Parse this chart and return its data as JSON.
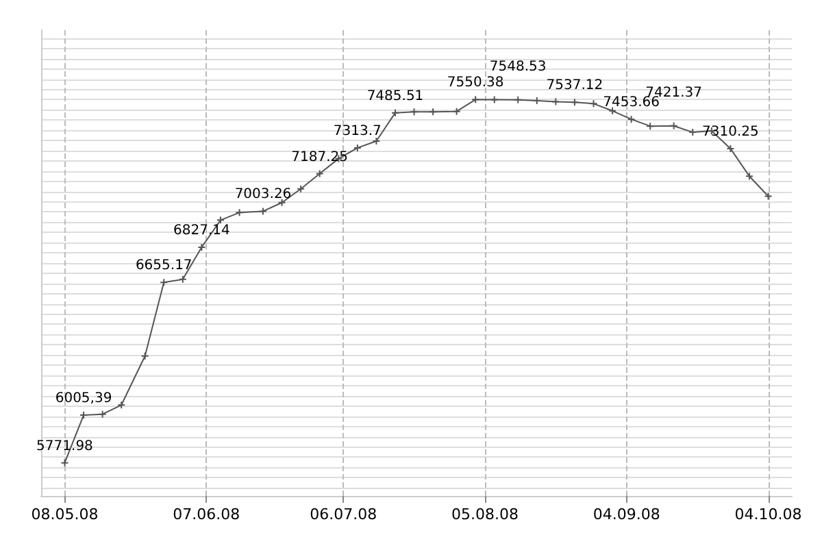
{
  "chart_data": {
    "type": "line",
    "x": [
      "2008-05-08",
      "2008-05-12",
      "2008-05-16",
      "2008-05-20",
      "2008-05-25",
      "2008-05-29",
      "2008-06-02",
      "2008-06-06",
      "2008-06-10",
      "2008-06-14",
      "2008-06-19",
      "2008-06-23",
      "2008-06-27",
      "2008-07-01",
      "2008-07-05",
      "2008-07-09",
      "2008-07-13",
      "2008-07-17",
      "2008-07-21",
      "2008-07-25",
      "2008-07-30",
      "2008-08-03",
      "2008-08-07",
      "2008-08-12",
      "2008-08-16",
      "2008-08-20",
      "2008-08-24",
      "2008-08-28",
      "2008-09-01",
      "2008-09-05",
      "2008-09-09",
      "2008-09-14",
      "2008-09-18",
      "2008-09-22",
      "2008-09-26",
      "2008-09-30",
      "2008-10-04"
    ],
    "series": [
      {
        "color": "#555555",
        "values": [
          5771.98,
          6005.39,
          6010,
          6055,
          6295,
          6655.17,
          6670,
          6827.14,
          6960,
          6997,
          7003.26,
          7046,
          7113,
          7187.25,
          7261,
          7313.7,
          7347,
          7485.51,
          7490,
          7490,
          7492,
          7550.38,
          7550,
          7548.53,
          7545,
          7540,
          7537.12,
          7530,
          7495,
          7453.66,
          7420,
          7421.37,
          7390,
          7397,
          7310.25,
          7175,
          7077
        ],
        "value_labels": [
          "5771.98",
          "6005,39",
          null,
          null,
          null,
          "6655.17",
          null,
          "6827.14",
          null,
          null,
          "7003.26",
          null,
          null,
          "7187.25",
          null,
          "7313.7",
          null,
          "7485.51",
          null,
          null,
          null,
          "7550.38",
          null,
          "7548.53",
          null,
          null,
          "7537.12",
          null,
          null,
          "7453.66",
          null,
          "7421.37",
          null,
          null,
          "7310.25",
          null,
          null
        ]
      }
    ],
    "xlim": [
      "2008-05-03",
      "2008-10-09"
    ],
    "xticks": [
      {
        "value": "2008-05-08",
        "label": "08.05.08"
      },
      {
        "value": "2008-06-07",
        "label": "07.06.08"
      },
      {
        "value": "2008-07-06",
        "label": "06.07.08"
      },
      {
        "value": "2008-08-05",
        "label": "05.08.08"
      },
      {
        "value": "2008-09-04",
        "label": "04.09.08"
      },
      {
        "value": "2008-10-04",
        "label": "04.10.08"
      }
    ],
    "ylim": [
      5610,
      7890
    ],
    "yticks": [
      {
        "value": 5650,
        "label": null
      },
      {
        "value": 5700,
        "label": null
      },
      {
        "value": 5750,
        "label": null
      },
      {
        "value": 5800,
        "label": null
      },
      {
        "value": 5850,
        "label": null
      },
      {
        "value": 5900,
        "label": null
      },
      {
        "value": 5950,
        "label": null
      },
      {
        "value": 6000,
        "label": null
      },
      {
        "value": 6050,
        "label": null
      },
      {
        "value": 6100,
        "label": null
      },
      {
        "value": 6150,
        "label": null
      },
      {
        "value": 6200,
        "label": null
      },
      {
        "value": 6250,
        "label": null
      },
      {
        "value": 6300,
        "label": null
      },
      {
        "value": 6350,
        "label": null
      },
      {
        "value": 6400,
        "label": null
      },
      {
        "value": 6450,
        "label": null
      },
      {
        "value": 6500,
        "label": null
      },
      {
        "value": 6550,
        "label": null
      },
      {
        "value": 6600,
        "label": null
      },
      {
        "value": 6650,
        "label": null
      },
      {
        "value": 6700,
        "label": null
      },
      {
        "value": 6750,
        "label": null
      },
      {
        "value": 6800,
        "label": null
      },
      {
        "value": 6850,
        "label": null
      },
      {
        "value": 6900,
        "label": null
      },
      {
        "value": 6950,
        "label": null
      },
      {
        "value": 7000,
        "label": null
      },
      {
        "value": 7050,
        "label": null
      },
      {
        "value": 7100,
        "label": null
      },
      {
        "value": 7150,
        "label": null
      },
      {
        "value": 7200,
        "label": null
      },
      {
        "value": 7250,
        "label": null
      },
      {
        "value": 7300,
        "label": null
      },
      {
        "value": 7350,
        "label": null
      },
      {
        "value": 7400,
        "label": null
      },
      {
        "value": 7450,
        "label": null
      },
      {
        "value": 7500,
        "label": null
      },
      {
        "value": 7550,
        "label": null
      },
      {
        "value": 7600,
        "label": null
      },
      {
        "value": 7650,
        "label": null
      },
      {
        "value": 7700,
        "label": null
      },
      {
        "value": 7750,
        "label": null
      },
      {
        "value": 7800,
        "label": null
      },
      {
        "value": 7850,
        "label": null
      }
    ],
    "tick_labels": "x",
    "grid": true,
    "marker": "cross",
    "line_style": "solid"
  }
}
